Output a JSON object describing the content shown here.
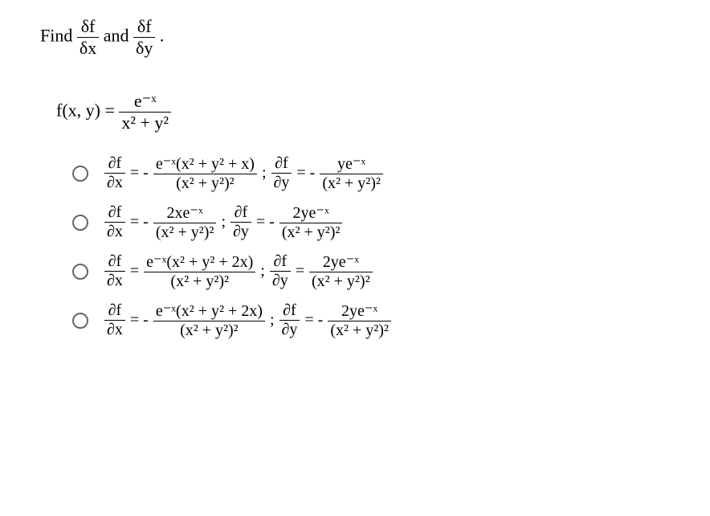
{
  "intro": {
    "prefix": "Find ",
    "d1_num": "δf",
    "d1_den": "δx",
    "mid": " and ",
    "d2_num": "δf",
    "d2_den": "δy",
    "suffix": " ."
  },
  "func": {
    "lhs": "f(x, y) = ",
    "num": "e⁻ˣ",
    "den": "x² + y²"
  },
  "options": [
    {
      "dx_lhs_num": "∂f",
      "dx_lhs_den": "∂x",
      "dx_eq": " = - ",
      "dx_rhs_num": "e⁻ˣ(x² + y² + x)",
      "dx_rhs_den": "(x² + y²)²",
      "semi": " ; ",
      "dy_lhs_num": "∂f",
      "dy_lhs_den": "∂y",
      "dy_eq": " = - ",
      "dy_rhs_num": "ye⁻ˣ",
      "dy_rhs_den": "(x² + y²)²"
    },
    {
      "dx_lhs_num": "∂f",
      "dx_lhs_den": "∂x",
      "dx_eq": " = - ",
      "dx_rhs_num": "2xe⁻ˣ",
      "dx_rhs_den": "(x² + y²)²",
      "semi": " ; ",
      "dy_lhs_num": "∂f",
      "dy_lhs_den": "∂y",
      "dy_eq": " = - ",
      "dy_rhs_num": "2ye⁻ˣ",
      "dy_rhs_den": "(x² + y²)²"
    },
    {
      "dx_lhs_num": "∂f",
      "dx_lhs_den": "∂x",
      "dx_eq": " = ",
      "dx_rhs_num": "e⁻ˣ(x² + y² + 2x)",
      "dx_rhs_den": "(x² + y²)²",
      "semi": " ; ",
      "dy_lhs_num": "∂f",
      "dy_lhs_den": "∂y",
      "dy_eq": " = ",
      "dy_rhs_num": "2ye⁻ˣ",
      "dy_rhs_den": "(x² + y²)²"
    },
    {
      "dx_lhs_num": "∂f",
      "dx_lhs_den": "∂x",
      "dx_eq": " = - ",
      "dx_rhs_num": "e⁻ˣ(x² + y² + 2x)",
      "dx_rhs_den": "(x² + y²)²",
      "semi": " ; ",
      "dy_lhs_num": "∂f",
      "dy_lhs_den": "∂y",
      "dy_eq": " = - ",
      "dy_rhs_num": "2ye⁻ˣ",
      "dy_rhs_den": "(x² + y²)²"
    }
  ],
  "styles": {
    "background_color": "#ffffff",
    "text_color": "#000000",
    "radio_border_color": "#666666",
    "font_family": "Times New Roman",
    "body_fontsize": 20,
    "intro_fontsize": 22
  }
}
